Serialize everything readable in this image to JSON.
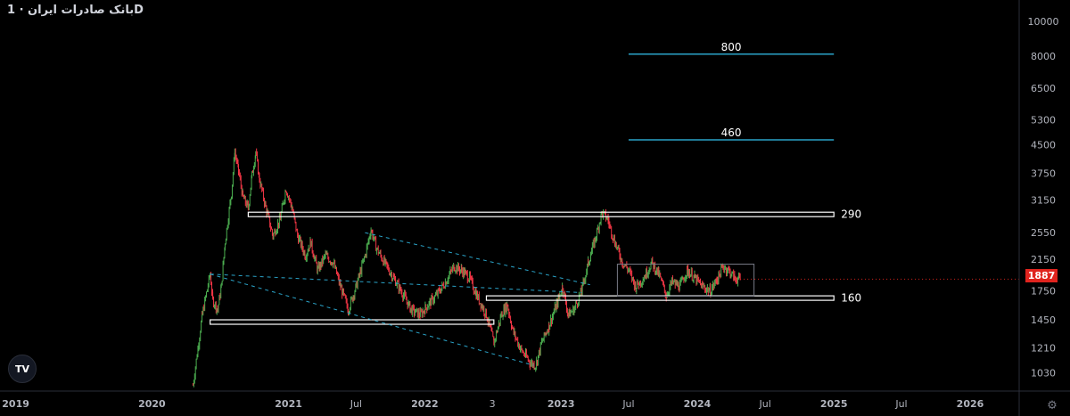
{
  "header": {
    "title": "بانک صادرات ایران · 1D"
  },
  "logo": {
    "text": "TV",
    "icon": "tradingview-logo-icon"
  },
  "settings_icon": "gear-icon",
  "current_price": {
    "label": "1887",
    "value": 1887,
    "color": "#e0241e"
  },
  "colors": {
    "up": "#26a69a",
    "down": "#ef5350",
    "up_candle": "#4caf50",
    "down_candle": "#f23645",
    "level_line": "#2aa3c8",
    "channel": "#2aa3c8",
    "box": "#ffffff"
  },
  "chart_data": {
    "type": "candlestick",
    "yscale": "log",
    "ylim": [
      920,
      11500
    ],
    "xlim": [
      "2018-11-20",
      "2026-05-10"
    ],
    "x_tick_labels": [
      {
        "date": "2019-01-01",
        "label": "2019"
      },
      {
        "date": "2020-01-01",
        "label": "2020"
      },
      {
        "date": "2021-01-01",
        "label": "2021"
      },
      {
        "date": "2021-07-01",
        "label": "Jul"
      },
      {
        "date": "2022-01-01",
        "label": "2022"
      },
      {
        "date": "2022-07-01",
        "label": "3"
      },
      {
        "date": "2023-01-01",
        "label": "2023"
      },
      {
        "date": "2023-07-01",
        "label": "Jul"
      },
      {
        "date": "2024-01-01",
        "label": "2024"
      },
      {
        "date": "2024-07-01",
        "label": "Jul"
      },
      {
        "date": "2025-01-01",
        "label": "2025"
      },
      {
        "date": "2025-07-01",
        "label": "Jul"
      },
      {
        "date": "2026-01-01",
        "label": "2026"
      }
    ],
    "y_tick_labels": [
      10000,
      8000,
      6500,
      5300,
      4500,
      3750,
      3150,
      2550,
      2150,
      1750,
      1450,
      1210,
      1030
    ],
    "price_path": [
      [
        "2020-04-20",
        950
      ],
      [
        "2020-05-15",
        1500
      ],
      [
        "2020-06-05",
        1950
      ],
      [
        "2020-06-12",
        1650
      ],
      [
        "2020-06-25",
        1550
      ],
      [
        "2020-07-05",
        1800
      ],
      [
        "2020-07-15",
        2400
      ],
      [
        "2020-08-01",
        3300
      ],
      [
        "2020-08-10",
        4300
      ],
      [
        "2020-08-20",
        3800
      ],
      [
        "2020-09-01",
        3200
      ],
      [
        "2020-09-15",
        3000
      ],
      [
        "2020-09-25",
        3700
      ],
      [
        "2020-10-05",
        4300
      ],
      [
        "2020-10-15",
        3600
      ],
      [
        "2020-11-01",
        3000
      ],
      [
        "2020-11-20",
        2500
      ],
      [
        "2020-12-10",
        2800
      ],
      [
        "2020-12-25",
        3400
      ],
      [
        "2021-01-10",
        3000
      ],
      [
        "2021-01-25",
        2500
      ],
      [
        "2021-02-15",
        2200
      ],
      [
        "2021-03-01",
        2400
      ],
      [
        "2021-03-20",
        2000
      ],
      [
        "2021-04-10",
        2200
      ],
      [
        "2021-05-01",
        2100
      ],
      [
        "2021-05-20",
        1800
      ],
      [
        "2021-06-10",
        1550
      ],
      [
        "2021-07-01",
        1800
      ],
      [
        "2021-07-25",
        2200
      ],
      [
        "2021-08-10",
        2600
      ],
      [
        "2021-08-25",
        2300
      ],
      [
        "2021-09-15",
        2100
      ],
      [
        "2021-10-10",
        1900
      ],
      [
        "2021-11-05",
        1700
      ],
      [
        "2021-11-25",
        1550
      ],
      [
        "2021-12-20",
        1500
      ],
      [
        "2022-01-10",
        1600
      ],
      [
        "2022-02-01",
        1700
      ],
      [
        "2022-02-25",
        1850
      ],
      [
        "2022-03-20",
        2050
      ],
      [
        "2022-04-10",
        2000
      ],
      [
        "2022-05-01",
        1900
      ],
      [
        "2022-05-20",
        1700
      ],
      [
        "2022-06-15",
        1500
      ],
      [
        "2022-07-05",
        1250
      ],
      [
        "2022-07-25",
        1500
      ],
      [
        "2022-08-10",
        1600
      ],
      [
        "2022-08-25",
        1350
      ],
      [
        "2022-09-15",
        1200
      ],
      [
        "2022-10-10",
        1100
      ],
      [
        "2022-10-25",
        1080
      ],
      [
        "2022-11-10",
        1250
      ],
      [
        "2022-11-30",
        1400
      ],
      [
        "2022-12-20",
        1600
      ],
      [
        "2023-01-05",
        1800
      ],
      [
        "2023-01-20",
        1500
      ],
      [
        "2023-02-05",
        1550
      ],
      [
        "2023-02-25",
        1750
      ],
      [
        "2023-03-15",
        2100
      ],
      [
        "2023-04-05",
        2500
      ],
      [
        "2023-04-20",
        2900
      ],
      [
        "2023-05-05",
        2800
      ],
      [
        "2023-05-25",
        2400
      ],
      [
        "2023-06-15",
        2100
      ],
      [
        "2023-07-01",
        2000
      ],
      [
        "2023-07-20",
        1800
      ],
      [
        "2023-08-10",
        1900
      ],
      [
        "2023-09-01",
        2100
      ],
      [
        "2023-09-20",
        1950
      ],
      [
        "2023-10-10",
        1700
      ],
      [
        "2023-10-25",
        1850
      ],
      [
        "2023-11-15",
        1800
      ],
      [
        "2023-12-05",
        2000
      ],
      [
        "2023-12-25",
        1900
      ],
      [
        "2024-01-15",
        1800
      ],
      [
        "2024-02-05",
        1750
      ],
      [
        "2024-02-25",
        1900
      ],
      [
        "2024-03-10",
        2050
      ],
      [
        "2024-03-25",
        2000
      ],
      [
        "2024-04-10",
        1900
      ],
      [
        "2024-04-25",
        1887
      ]
    ],
    "horizontal_zones": [
      {
        "label": "290",
        "price": 2870,
        "from": "2020-09-15",
        "to": "2025-01-01"
      },
      {
        "label": "160",
        "price": 1670,
        "from": "2022-06-15",
        "to": "2025-01-01"
      },
      {
        "label": "",
        "price": 1430,
        "from": "2020-06-05",
        "to": "2022-07-05"
      }
    ],
    "target_lines": [
      {
        "label": "800",
        "price": 8100,
        "from": "2023-07-01",
        "to": "2025-01-01"
      },
      {
        "label": "460",
        "price": 4650,
        "from": "2023-07-01",
        "to": "2025-01-01"
      }
    ],
    "channel": [
      {
        "from": [
          "2020-06-05",
          1950
        ],
        "to": [
          "2023-02-25",
          1730
        ]
      },
      {
        "from": [
          "2021-07-25",
          2550
        ],
        "to": [
          "2023-03-20",
          1820
        ]
      },
      {
        "from": [
          "2020-06-05",
          1950
        ],
        "to": [
          "2022-10-20",
          1080
        ]
      }
    ],
    "range_box": {
      "from": "2023-06-01",
      "to": "2024-06-01",
      "top": 2080,
      "bottom": 1690
    }
  }
}
